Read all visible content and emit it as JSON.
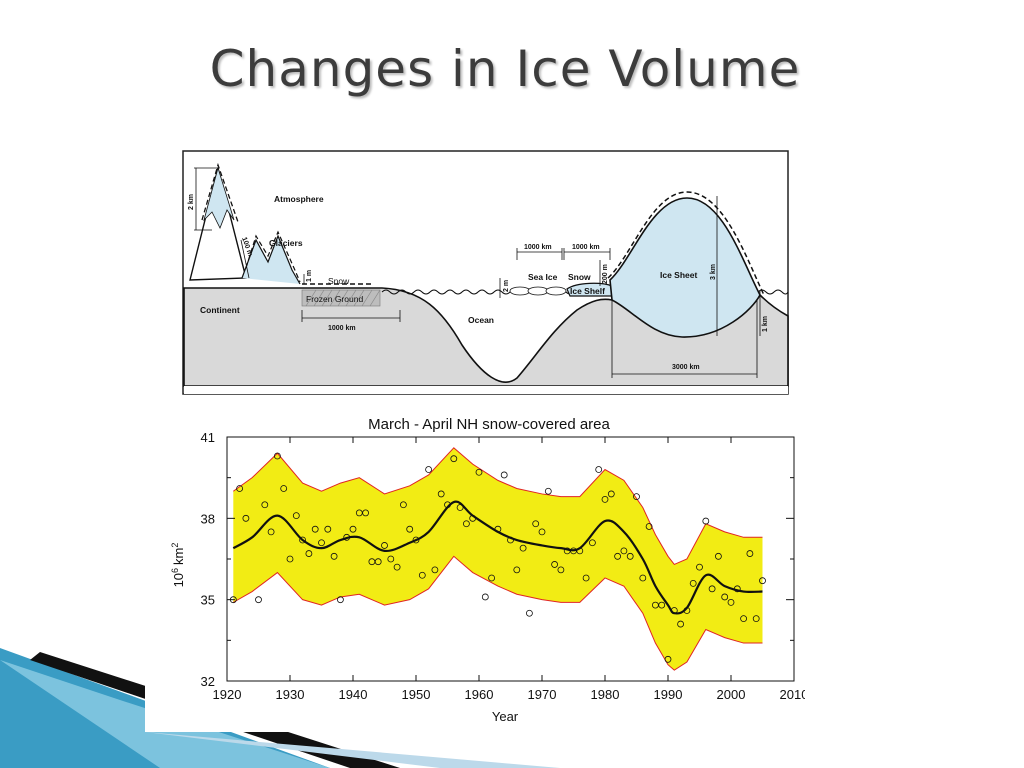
{
  "slide": {
    "title": "Changes in Ice Volume"
  },
  "diagram": {
    "labels": {
      "atmosphere": "Atmosphere",
      "glaciers": "Glaciers",
      "snow_land": "Snow",
      "frozen_ground": "Frozen Ground",
      "continent": "Continent",
      "ocean": "Ocean",
      "sea_ice": "Sea Ice",
      "snow_sea": "Snow",
      "ice_shelf": "Ice Shelf",
      "ice_sheet": "Ice Sheet"
    },
    "dimensions": {
      "mountain_height": "2 km",
      "glacier_depth": "100 m",
      "snow_depth": "1 m",
      "frozen_ground_width": "1000 km",
      "sea_ice_thickness": "2 m",
      "sea_ice_width": "1000 km",
      "snow_width": "1000 km",
      "ice_shelf_thickness": "200 m",
      "ice_sheet_height": "3 km",
      "ice_sheet_base": "1 km",
      "ice_sheet_width": "3000 km"
    }
  },
  "chart_data": {
    "type": "line",
    "title": "March - April NH snow-covered area",
    "xlabel": "Year",
    "ylabel_base": "10",
    "ylabel_sup": "6",
    "ylabel_unit": "km",
    "ylabel_sup2": "2",
    "xlim": [
      1920,
      2010
    ],
    "ylim": [
      32,
      41
    ],
    "xticks": [
      "1920",
      "1930",
      "1940",
      "1950",
      "1960",
      "1970",
      "1980",
      "1990",
      "2000",
      "2010"
    ],
    "yticks": [
      "41",
      "38",
      "35",
      "32"
    ],
    "colors": {
      "band_fill": "#f2ec14",
      "band_edge": "#e02424",
      "line": "#111111",
      "points": "#111111"
    },
    "series": [
      {
        "style": "points",
        "x": [
          1921,
          1922,
          1923,
          1925,
          1926,
          1927,
          1928,
          1929,
          1930,
          1931,
          1932,
          1933,
          1934,
          1935,
          1936,
          1937,
          1938,
          1939,
          1940,
          1941,
          1942,
          1943,
          1944,
          1945,
          1946,
          1947,
          1948,
          1949,
          1950,
          1951,
          1952,
          1953,
          1954,
          1955,
          1956,
          1957,
          1958,
          1959,
          1960,
          1961,
          1962,
          1963,
          1964,
          1965,
          1966,
          1967,
          1968,
          1969,
          1970,
          1971,
          1972,
          1973,
          1974,
          1975,
          1976,
          1977,
          1978,
          1979,
          1980,
          1981,
          1982,
          1983,
          1984,
          1985,
          1986,
          1987,
          1988,
          1989,
          1990,
          1991,
          1992,
          1993,
          1994,
          1995,
          1996,
          1997,
          1998,
          1999,
          2000,
          2001,
          2002,
          2003,
          2004,
          2005
        ],
        "y": [
          35.0,
          39.1,
          38.0,
          35.0,
          38.5,
          37.5,
          40.3,
          39.1,
          36.5,
          38.1,
          37.2,
          36.7,
          37.6,
          37.1,
          37.6,
          36.6,
          35.0,
          37.3,
          37.6,
          38.2,
          38.2,
          36.4,
          36.4,
          37.0,
          36.5,
          36.2,
          38.5,
          37.6,
          37.2,
          35.9,
          39.8,
          36.1,
          38.9,
          38.5,
          40.2,
          38.4,
          37.8,
          38.0,
          39.7,
          35.1,
          35.8,
          37.6,
          39.6,
          37.2,
          36.1,
          36.9,
          34.5,
          37.8,
          37.5,
          39.0,
          36.3,
          36.1,
          36.8,
          36.8,
          36.8,
          35.8,
          37.1,
          39.8,
          38.7,
          38.9,
          36.6,
          36.8,
          36.6,
          38.8,
          35.8,
          37.7,
          34.8,
          34.8,
          32.8,
          34.6,
          34.1,
          34.6,
          35.6,
          36.2,
          37.9,
          35.4,
          36.6,
          35.1,
          34.9,
          35.4,
          34.3,
          36.7,
          34.3,
          35.7
        ]
      },
      {
        "style": "smooth-line",
        "x": [
          1921,
          1924,
          1928,
          1932,
          1935,
          1938,
          1941,
          1945,
          1949,
          1952,
          1956,
          1959,
          1963,
          1966,
          1970,
          1973,
          1976,
          1980,
          1983,
          1986,
          1988,
          1990,
          1991,
          1993,
          1996,
          1999,
          2002,
          2005
        ],
        "y": [
          36.9,
          37.3,
          38.1,
          37.2,
          36.9,
          37.2,
          37.3,
          36.8,
          37.1,
          37.5,
          38.6,
          38.1,
          37.5,
          37.2,
          37.0,
          36.9,
          36.9,
          37.9,
          37.5,
          36.5,
          35.5,
          34.8,
          34.5,
          34.7,
          35.9,
          35.5,
          35.3,
          35.3
        ]
      },
      {
        "style": "band-upper",
        "x": [
          1921,
          1924,
          1928,
          1932,
          1935,
          1938,
          1941,
          1945,
          1949,
          1952,
          1956,
          1959,
          1963,
          1966,
          1970,
          1973,
          1976,
          1980,
          1983,
          1986,
          1988,
          1990,
          1991,
          1993,
          1996,
          1999,
          2002,
          2005
        ],
        "y": [
          39.0,
          39.5,
          40.4,
          39.3,
          39.0,
          39.3,
          39.5,
          38.9,
          39.2,
          39.6,
          40.6,
          40.0,
          39.4,
          39.1,
          38.9,
          38.8,
          38.8,
          39.8,
          39.4,
          38.4,
          37.4,
          36.6,
          36.3,
          36.5,
          37.8,
          37.5,
          37.3,
          37.3
        ]
      },
      {
        "style": "band-lower",
        "x": [
          1921,
          1924,
          1928,
          1932,
          1935,
          1938,
          1941,
          1945,
          1949,
          1952,
          1956,
          1959,
          1963,
          1966,
          1970,
          1973,
          1976,
          1980,
          1983,
          1986,
          1988,
          1990,
          1991,
          1993,
          1996,
          1999,
          2002,
          2005
        ],
        "y": [
          34.9,
          35.3,
          36.0,
          35.0,
          34.8,
          35.1,
          35.2,
          34.8,
          35.0,
          35.4,
          36.6,
          36.0,
          35.5,
          35.2,
          35.0,
          34.9,
          34.9,
          35.8,
          35.5,
          34.5,
          33.4,
          32.6,
          32.4,
          32.7,
          33.9,
          33.6,
          33.4,
          33.4
        ]
      }
    ]
  }
}
